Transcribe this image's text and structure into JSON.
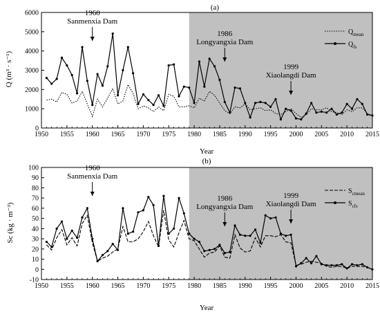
{
  "chart_data": [
    {
      "type": "line",
      "panel_label": "(a)",
      "title": "",
      "xlabel": "Year",
      "ylabel": "Q (m³ · s⁻¹)",
      "xlim": [
        1950,
        2015
      ],
      "ylim": [
        0,
        6000
      ],
      "xticks": [
        1950,
        1955,
        1960,
        1965,
        1970,
        1975,
        1980,
        1985,
        1990,
        1995,
        2000,
        2005,
        2010,
        2015
      ],
      "yticks": [
        0,
        1000,
        2000,
        3000,
        4000,
        5000,
        6000
      ],
      "shaded_region": {
        "x_start": 1979,
        "x_end": 2015,
        "color": "#c0c0c0"
      },
      "legend": {
        "placement": "top-right"
      },
      "x": [
        1951,
        1952,
        1953,
        1954,
        1955,
        1956,
        1957,
        1958,
        1959,
        1960,
        1961,
        1962,
        1963,
        1964,
        1965,
        1966,
        1967,
        1968,
        1969,
        1970,
        1971,
        1972,
        1973,
        1974,
        1975,
        1976,
        1977,
        1978,
        1979,
        1980,
        1981,
        1982,
        1983,
        1984,
        1985,
        1986,
        1987,
        1988,
        1989,
        1990,
        1991,
        1992,
        1993,
        1994,
        1995,
        1996,
        1997,
        1998,
        1999,
        2000,
        2001,
        2002,
        2003,
        2004,
        2005,
        2006,
        2007,
        2008,
        2009,
        2010,
        2011,
        2012,
        2013,
        2014,
        2015
      ],
      "series": [
        {
          "name_main": "Q",
          "name_sub": "mean",
          "style": "dotted",
          "values": [
            1450,
            1500,
            1350,
            1850,
            1750,
            1300,
            1400,
            1900,
            1250,
            600,
            1500,
            1100,
            1550,
            2050,
            1250,
            1400,
            2250,
            1800,
            1000,
            1150,
            1050,
            850,
            1100,
            900,
            1750,
            1650,
            1100,
            1100,
            1150,
            1050,
            1550,
            1400,
            1900,
            1700,
            1300,
            900,
            750,
            1100,
            1050,
            1250,
            950,
            1000,
            1050,
            900,
            950,
            750,
            700,
            850,
            1000,
            750,
            550,
            700,
            1000,
            950,
            950,
            1050,
            850,
            800,
            700,
            950,
            850,
            1050,
            1050,
            750,
            650
          ]
        },
        {
          "name_main": "Q",
          "name_sub": "fs",
          "style": "solid-marker",
          "values": [
            2600,
            2300,
            2550,
            3650,
            3250,
            2750,
            1800,
            4200,
            2450,
            1200,
            2800,
            2200,
            3200,
            4900,
            1700,
            3000,
            4200,
            2850,
            1250,
            1750,
            1450,
            1200,
            1700,
            1150,
            3250,
            3300,
            1650,
            2150,
            2100,
            1300,
            3450,
            2150,
            3600,
            3200,
            2500,
            1350,
            800,
            2100,
            2050,
            1300,
            550,
            1300,
            1350,
            1300,
            1100,
            1500,
            450,
            1000,
            900,
            500,
            450,
            750,
            1300,
            800,
            850,
            800,
            1000,
            700,
            800,
            1250,
            1000,
            1500,
            1250,
            700,
            650
          ]
        }
      ],
      "annotations": [
        {
          "line1": "1960",
          "line2": "Sanmenxia Dam",
          "x": 1960
        },
        {
          "line1": "1986",
          "line2": "Longyangxia Dam",
          "x": 1986
        },
        {
          "line1": "1999",
          "line2": "Xiaolangdi Dam",
          "x": 1999
        }
      ]
    },
    {
      "type": "line",
      "panel_label": "(b)",
      "title": "",
      "xlabel": "Year",
      "ylabel": "Sc (kg · m⁻³)",
      "ylabel_main": "S",
      "ylabel_sub": "c",
      "ylabel_rest": "(kg· m",
      "xlim": [
        1950,
        2015
      ],
      "ylim": [
        -10,
        100
      ],
      "xticks": [
        1950,
        1955,
        1960,
        1965,
        1970,
        1975,
        1980,
        1985,
        1990,
        1995,
        2000,
        2005,
        2010,
        2015
      ],
      "yticks": [
        -10,
        0,
        10,
        20,
        30,
        40,
        50,
        60,
        70,
        80,
        90,
        100
      ],
      "shaded_region": {
        "x_start": 1979,
        "x_end": 2015,
        "color": "#c0c0c0"
      },
      "legend": {
        "placement": "top-right"
      },
      "x": [
        1951,
        1952,
        1953,
        1954,
        1955,
        1956,
        1957,
        1958,
        1959,
        1960,
        1961,
        1962,
        1963,
        1964,
        1965,
        1966,
        1967,
        1968,
        1969,
        1970,
        1971,
        1972,
        1973,
        1974,
        1975,
        1976,
        1977,
        1978,
        1979,
        1980,
        1981,
        1982,
        1983,
        1984,
        1985,
        1986,
        1987,
        1988,
        1989,
        1990,
        1991,
        1992,
        1993,
        1994,
        1995,
        1996,
        1997,
        1998,
        1999,
        2000,
        2001,
        2002,
        2003,
        2004,
        2005,
        2006,
        2007,
        2008,
        2009,
        2010,
        2011,
        2012,
        2013,
        2014,
        2015
      ],
      "series": [
        {
          "name_main": "S",
          "name_sub": "cmean",
          "style": "dashed",
          "values": [
            24,
            19,
            31,
            39,
            24,
            31,
            23,
            45,
            53,
            26,
            8,
            11,
            13,
            17,
            20,
            42,
            27,
            27,
            30,
            37,
            47,
            33,
            22,
            58,
            29,
            22,
            36,
            48,
            30,
            28,
            20,
            12,
            16,
            17,
            23,
            12,
            11,
            34,
            21,
            17,
            18,
            31,
            22,
            33,
            33,
            32,
            34,
            27,
            26,
            4,
            5,
            7,
            8,
            7,
            6,
            3,
            2,
            3,
            3,
            1,
            3,
            3,
            3,
            2,
            0
          ]
        },
        {
          "name_main": "S",
          "name_sub": "cfs",
          "style": "solid-marker",
          "values": [
            27,
            22,
            40,
            47,
            30,
            38,
            31,
            51,
            60,
            30,
            8,
            14,
            18,
            25,
            19,
            60,
            35,
            37,
            56,
            58,
            71,
            63,
            23,
            72,
            35,
            40,
            70,
            55,
            35,
            30,
            27,
            18,
            19,
            20,
            24,
            16,
            17,
            43,
            34,
            33,
            33,
            39,
            26,
            53,
            50,
            51,
            35,
            33,
            34,
            3,
            6,
            11,
            6,
            13,
            5,
            4,
            4,
            4,
            5,
            1,
            5,
            4,
            5,
            2,
            0
          ]
        }
      ],
      "annotations": [
        {
          "line1": "1960",
          "line2": "Sanmenxia Dam",
          "x": 1960
        },
        {
          "line1": "1986",
          "line2": "Longyangxia Dam",
          "x": 1986
        },
        {
          "line1": "1999",
          "line2": "Xiaolangdi Dam",
          "x": 1999
        }
      ]
    }
  ]
}
